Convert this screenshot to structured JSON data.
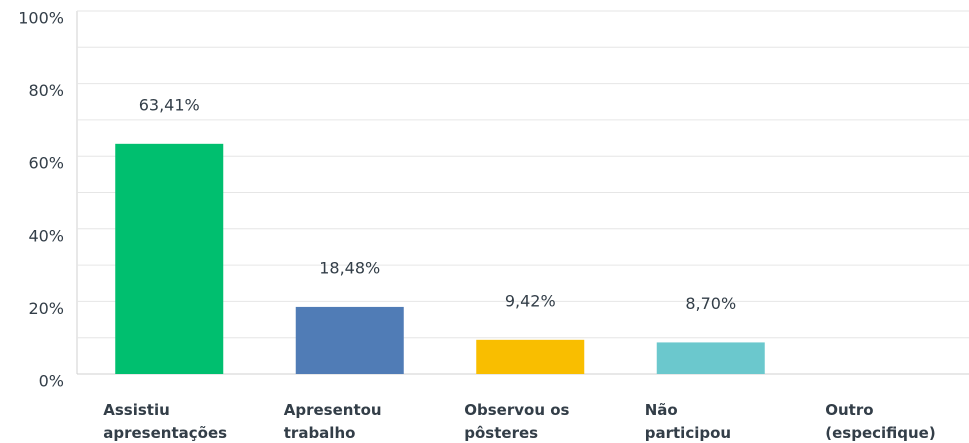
{
  "chart_data": {
    "type": "bar",
    "categories": [
      "Assistiu apresentações",
      "Apresentou trabalho",
      "Observou os pôsteres",
      "Não participou",
      "Outro (especifique)"
    ],
    "values": [
      63.41,
      18.48,
      9.42,
      8.7,
      0
    ],
    "value_labels": [
      "63,41%",
      "18,48%",
      "9,42%",
      "8,70%",
      null
    ],
    "colors": [
      "#00bf6f",
      "#507cb6",
      "#f9be00",
      "#6bc8cd",
      "#9d9d9d"
    ],
    "ylim": [
      0,
      100
    ],
    "yticks": [
      {
        "value": 0,
        "label": "0%"
      },
      {
        "value": 20,
        "label": "20%"
      },
      {
        "value": 40,
        "label": "40%"
      },
      {
        "value": 60,
        "label": "60%"
      },
      {
        "value": 80,
        "label": "80%"
      },
      {
        "value": 100,
        "label": "100%"
      }
    ],
    "minor_yticks": [
      10,
      30,
      50,
      70,
      90
    ],
    "grid": true
  }
}
